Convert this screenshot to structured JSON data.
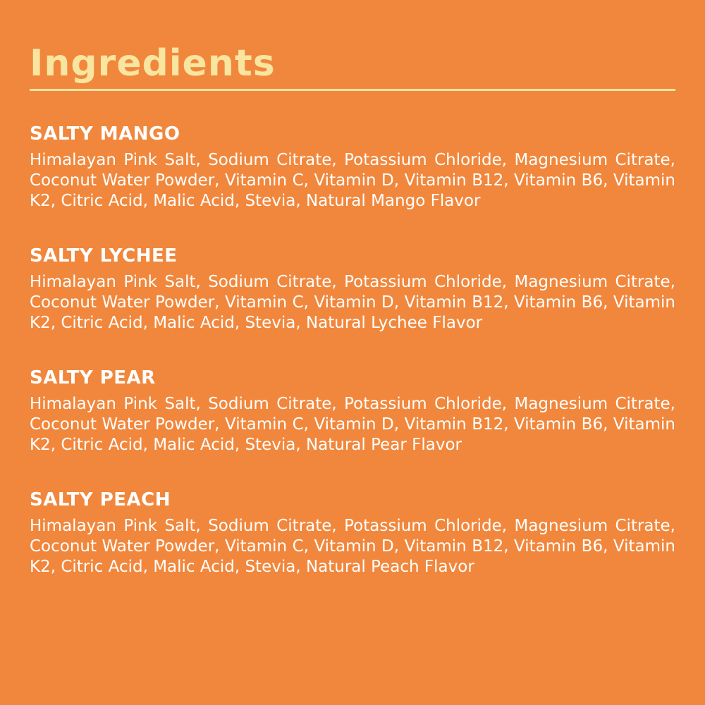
{
  "page": {
    "background_color": "#F1873C",
    "accent_color": "#F8E5A0",
    "text_color": "#FFFFFF"
  },
  "title": "Ingredients",
  "sections": [
    {
      "name": "SALTY MANGO",
      "ingredients": "Himalayan Pink Salt, Sodium Citrate, Potassium Chloride, Magnesium Citrate, Coconut Water Powder, Vitamin C, Vitamin D, Vitamin B12, Vitamin B6, Vitamin K2, Citric Acid, Malic Acid, Stevia, Natural Mango Flavor"
    },
    {
      "name": "SALTY LYCHEE",
      "ingredients": "Himalayan Pink Salt, Sodium Citrate, Potassium Chloride, Magnesium Citrate, Coconut Water Powder, Vitamin C, Vitamin D, Vitamin B12, Vitamin B6, Vitamin K2, Citric Acid, Malic Acid, Stevia, Natural Lychee Flavor"
    },
    {
      "name": "SALTY PEAR",
      "ingredients": "Himalayan Pink Salt, Sodium Citrate, Potassium Chloride, Magnesium Citrate, Coconut Water Powder, Vitamin C, Vitamin D, Vitamin B12, Vitamin B6, Vitamin K2, Citric Acid, Malic Acid, Stevia, Natural Pear Flavor"
    },
    {
      "name": "SALTY PEACH",
      "ingredients": "Himalayan Pink Salt, Sodium Citrate, Potassium Chloride, Magnesium Citrate, Coconut Water Powder, Vitamin C, Vitamin D, Vitamin B12, Vitamin B6, Vitamin K2, Citric Acid, Malic Acid, Stevia, Natural Peach Flavor"
    }
  ]
}
